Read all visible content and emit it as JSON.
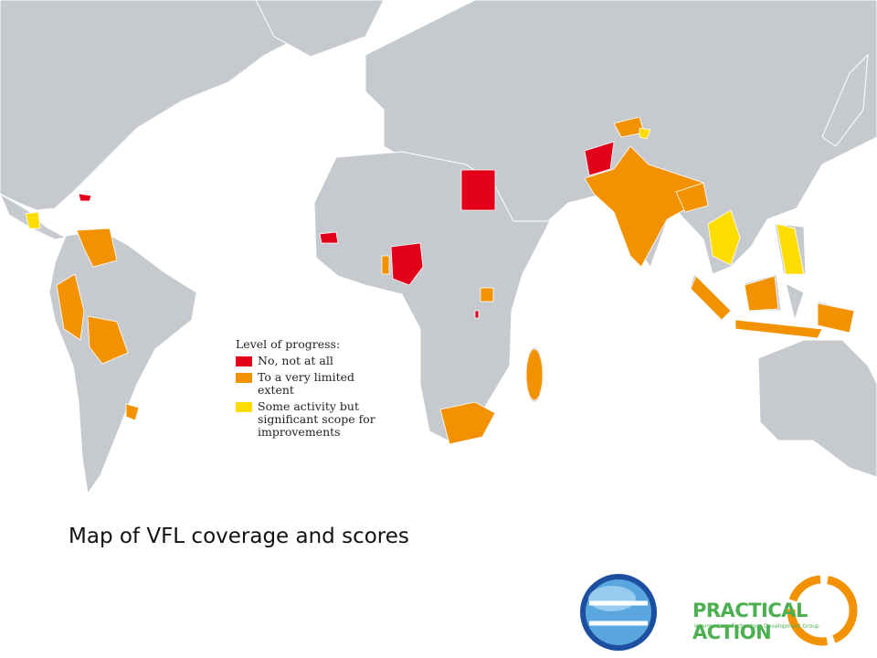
{
  "map": {
    "legend": {
      "title": "Level of progress:",
      "items": [
        {
          "label": "No, not at all",
          "color": "#e3001b"
        },
        {
          "label": "To a very limited extent",
          "color": "#f39200"
        },
        {
          "label": "Some activity but significant scope for improvements",
          "color": "#ffdd00"
        }
      ]
    },
    "caption": "Map of VFL coverage and scores"
  },
  "footer": {
    "logo_name": "PRACTICAL ACTION",
    "logo_tagline": "Intermediate Technology Development Group"
  }
}
